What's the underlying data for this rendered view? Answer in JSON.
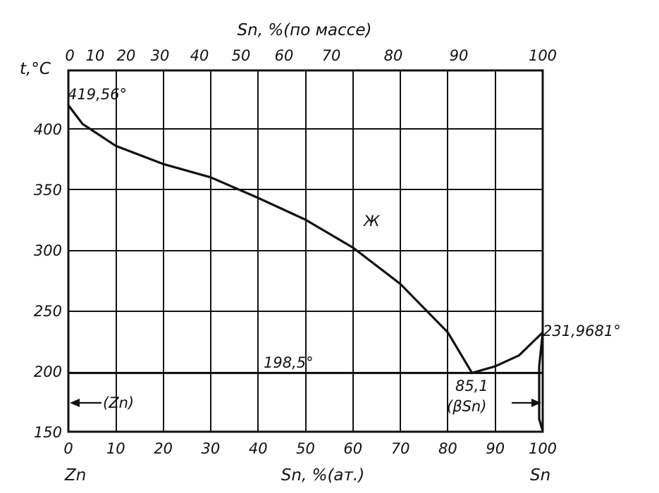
{
  "chart_data": {
    "type": "line",
    "title": "",
    "top_axis_label": "Sn, %(по массе)",
    "top_ticks": [
      "0",
      "10",
      "20",
      "30",
      "40",
      "50",
      "60",
      "70",
      "80",
      "90",
      "100"
    ],
    "y_axis_label": "t,°C",
    "y_ticks": [
      "150",
      "200",
      "250",
      "300",
      "350",
      "400"
    ],
    "ylim": [
      150,
      430
    ],
    "bottom_axis_label": "Sn, %(ат.)",
    "bottom_ticks": [
      "0",
      "10",
      "20",
      "30",
      "40",
      "50",
      "60",
      "70",
      "80",
      "90",
      "100"
    ],
    "xlim": [
      0,
      100
    ],
    "left_component": "Zn",
    "right_component": "Sn",
    "liquidus_zn_side": [
      [
        0,
        419.56
      ],
      [
        3,
        404
      ],
      [
        10,
        386
      ],
      [
        20,
        371
      ],
      [
        30,
        360
      ],
      [
        40,
        343
      ],
      [
        50,
        325
      ],
      [
        60,
        302
      ],
      [
        70,
        272
      ],
      [
        80,
        232
      ],
      [
        85.1,
        198.5
      ]
    ],
    "liquidus_sn_side": [
      [
        85.1,
        198.5
      ],
      [
        90,
        204
      ],
      [
        95,
        213
      ],
      [
        100,
        231.9681
      ]
    ],
    "eutectic_line": {
      "temperature": 198.5
    },
    "annotations": {
      "zn_melting": "419,56°",
      "sn_melting": "231,9681°",
      "eutectic_temp": "198,5°",
      "eutectic_comp": "85,1",
      "liquid_region": "Ж",
      "zn_phase": "(Zn)",
      "sn_phase": "(βSn)"
    }
  }
}
